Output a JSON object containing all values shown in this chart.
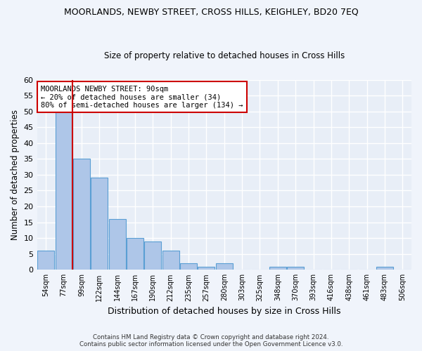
{
  "title": "MOORLANDS, NEWBY STREET, CROSS HILLS, KEIGHLEY, BD20 7EQ",
  "subtitle": "Size of property relative to detached houses in Cross Hills",
  "xlabel": "Distribution of detached houses by size in Cross Hills",
  "ylabel": "Number of detached properties",
  "bar_color": "#aec6e8",
  "bar_edge_color": "#5a9fd4",
  "background_color": "#e8eef7",
  "grid_color": "#ffffff",
  "fig_facecolor": "#f0f4fb",
  "categories": [
    "54sqm",
    "77sqm",
    "99sqm",
    "122sqm",
    "144sqm",
    "167sqm",
    "190sqm",
    "212sqm",
    "235sqm",
    "257sqm",
    "280sqm",
    "303sqm",
    "325sqm",
    "348sqm",
    "370sqm",
    "393sqm",
    "416sqm",
    "438sqm",
    "461sqm",
    "483sqm",
    "506sqm"
  ],
  "values": [
    6,
    50,
    35,
    29,
    16,
    10,
    9,
    6,
    2,
    1,
    2,
    0,
    0,
    1,
    1,
    0,
    0,
    0,
    0,
    1,
    0
  ],
  "ylim": [
    0,
    60
  ],
  "yticks": [
    0,
    5,
    10,
    15,
    20,
    25,
    30,
    35,
    40,
    45,
    50,
    55,
    60
  ],
  "red_line_x": 1.5,
  "annotation_text": "MOORLANDS NEWBY STREET: 90sqm\n← 20% of detached houses are smaller (34)\n80% of semi-detached houses are larger (134) →",
  "annotation_box_color": "#ffffff",
  "annotation_border_color": "#cc0000",
  "footer_line1": "Contains HM Land Registry data © Crown copyright and database right 2024.",
  "footer_line2": "Contains public sector information licensed under the Open Government Licence v3.0."
}
